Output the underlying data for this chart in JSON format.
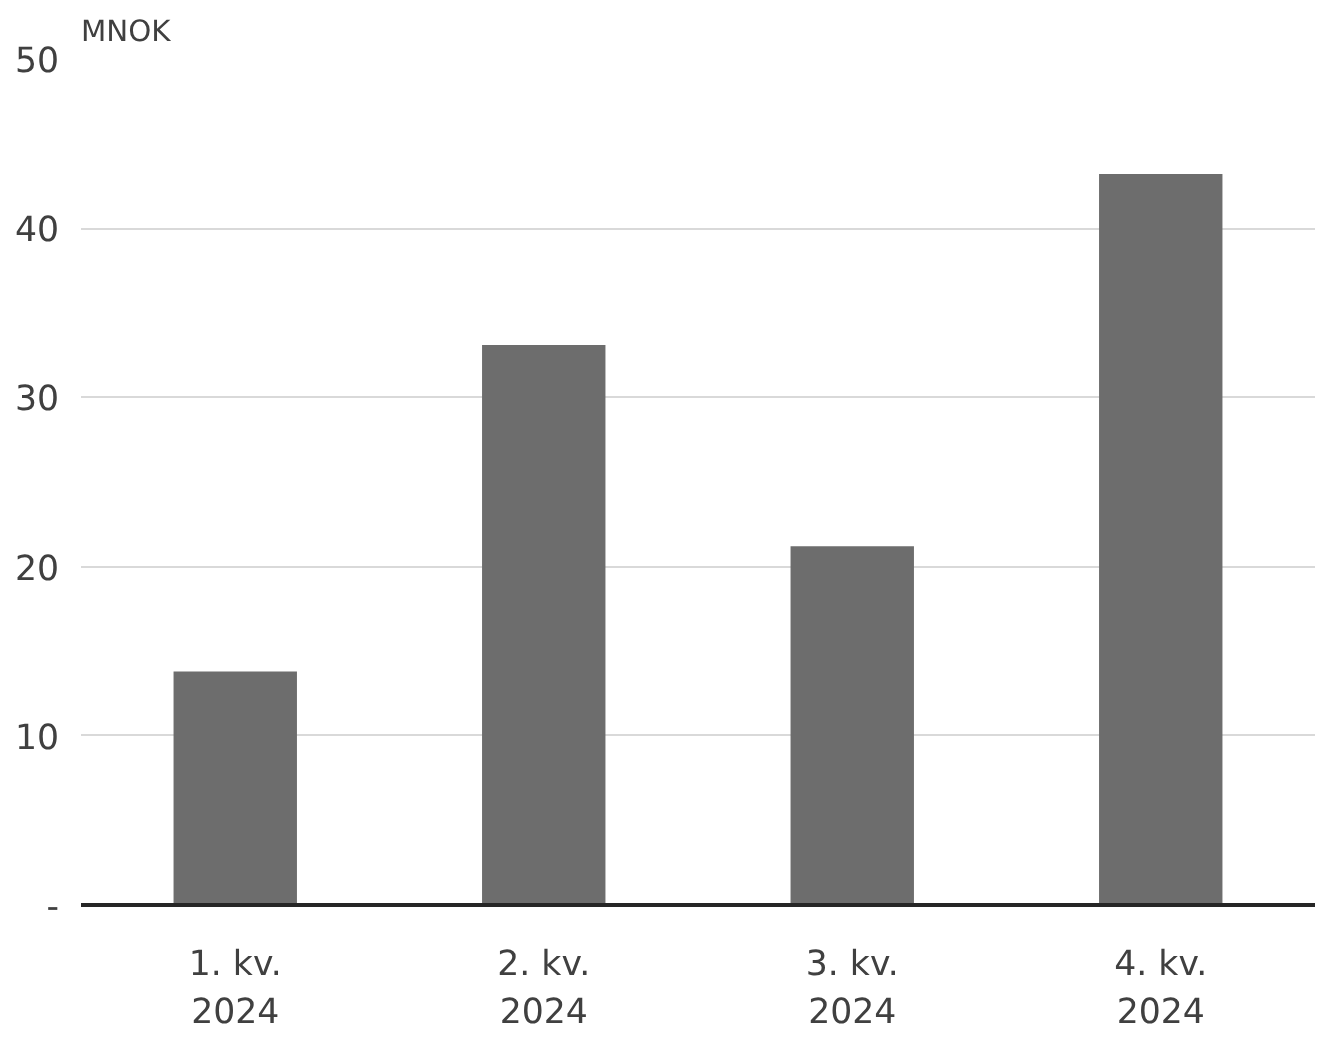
{
  "chart_data": {
    "type": "bar",
    "ylabel": "MNOK",
    "categories": [
      "1. kv.\n2024",
      "2. kv.\n2024",
      "3. kv.\n2024",
      "4. kv.\n2024"
    ],
    "series": [
      {
        "color": "#6d6d6d",
        "values": [
          13.8,
          33.1,
          21.2,
          43.2
        ]
      }
    ],
    "ylim": [
      0,
      50
    ],
    "yticks": [
      {
        "value": 0,
        "label": "-"
      },
      10,
      20,
      30,
      40,
      50
    ],
    "grid": "y"
  }
}
